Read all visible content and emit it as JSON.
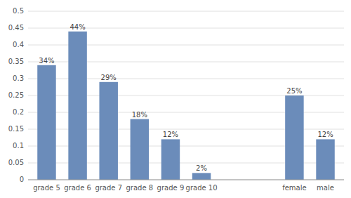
{
  "chart_data": {
    "type": "bar",
    "categories": [
      "grade 5",
      "grade 6",
      "grade 7",
      "grade 8",
      "grade 9",
      "grade 10",
      null,
      null,
      "female",
      "male"
    ],
    "values": [
      0.34,
      0.44,
      0.29,
      0.18,
      0.12,
      0.02,
      0,
      0,
      0.25,
      0.12
    ],
    "value_labels": [
      "34%",
      "44%",
      "29%",
      "18%",
      "12%",
      "2%",
      null,
      null,
      "25%",
      "12%"
    ],
    "data_labels": true,
    "color": "#6b8cba",
    "ylim": [
      0,
      0.5
    ],
    "yticks": [
      0,
      0.05,
      0.1,
      0.15,
      0.2,
      0.25,
      0.3,
      0.35,
      0.4,
      0.45,
      0.5
    ],
    "grid": true
  }
}
